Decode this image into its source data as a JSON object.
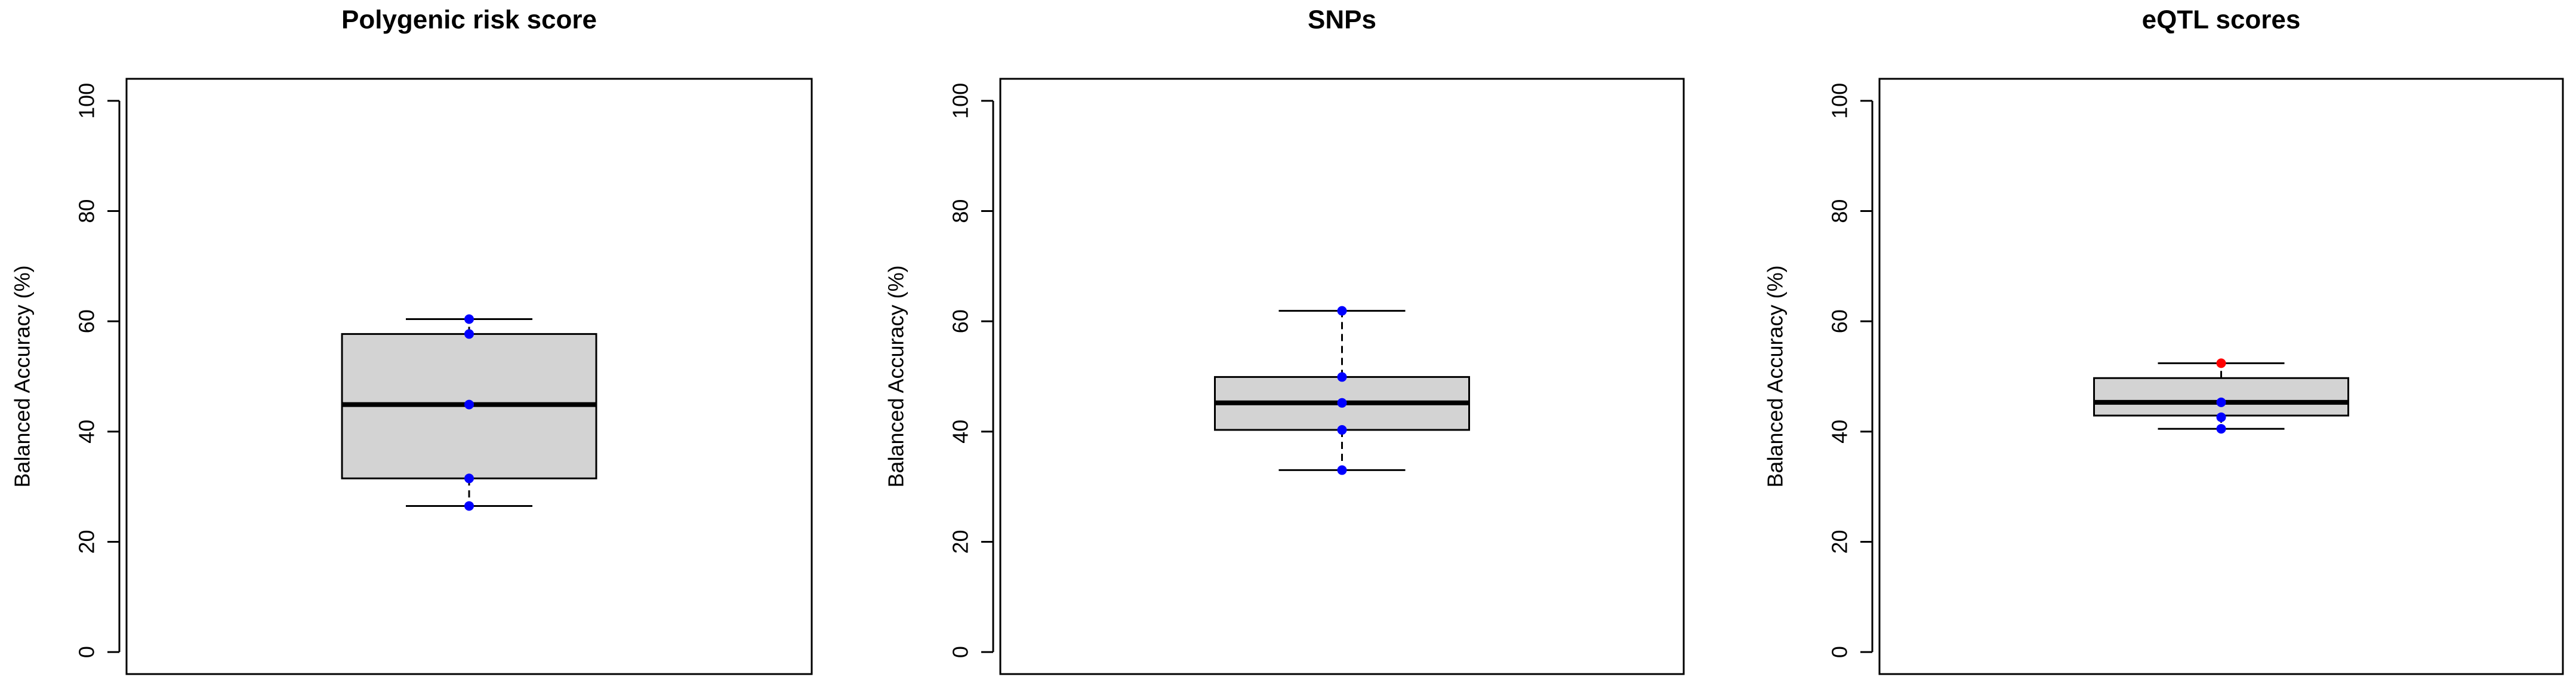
{
  "chart_data": [
    {
      "type": "box",
      "title": "Polygenic risk score",
      "ylabel": "Balanced Accuracy (%)",
      "ylim": [
        -4,
        104
      ],
      "yticks": [
        0,
        20,
        40,
        60,
        80,
        100
      ],
      "box_color": "#d3d3d3",
      "whisker_low": 26.5,
      "q1": 31.5,
      "median": 44.9,
      "q3": 57.7,
      "whisker_high": 60.4,
      "points": [
        60.4,
        57.7,
        44.9,
        31.5,
        26.5
      ],
      "point_colors": [
        "#0000ff",
        "#0000ff",
        "#0000ff",
        "#0000ff",
        "#0000ff"
      ]
    },
    {
      "type": "box",
      "title": "SNPs",
      "ylabel": "Balanced Accuracy (%)",
      "ylim": [
        -4,
        104
      ],
      "yticks": [
        0,
        20,
        40,
        60,
        80,
        100
      ],
      "box_color": "#d3d3d3",
      "whisker_low": 33,
      "q1": 40.3,
      "median": 45.2,
      "q3": 49.9,
      "whisker_high": 61.9,
      "points": [
        61.9,
        49.9,
        45.2,
        40.3,
        33
      ],
      "point_colors": [
        "#0000ff",
        "#0000ff",
        "#0000ff",
        "#0000ff",
        "#0000ff"
      ]
    },
    {
      "type": "box",
      "title": "eQTL scores",
      "ylabel": "Balanced Accuracy (%)",
      "ylim": [
        -4,
        104
      ],
      "yticks": [
        0,
        20,
        40,
        60,
        80,
        100
      ],
      "box_color": "#d3d3d3",
      "whisker_low": 40.5,
      "q1": 42.9,
      "median": 45.3,
      "q3": 49.7,
      "whisker_high": 52.4,
      "points": [
        52.4,
        45.3,
        42.6,
        40.5
      ],
      "point_colors": [
        "#ff0000",
        "#0000ff",
        "#0000ff",
        "#0000ff"
      ]
    }
  ]
}
